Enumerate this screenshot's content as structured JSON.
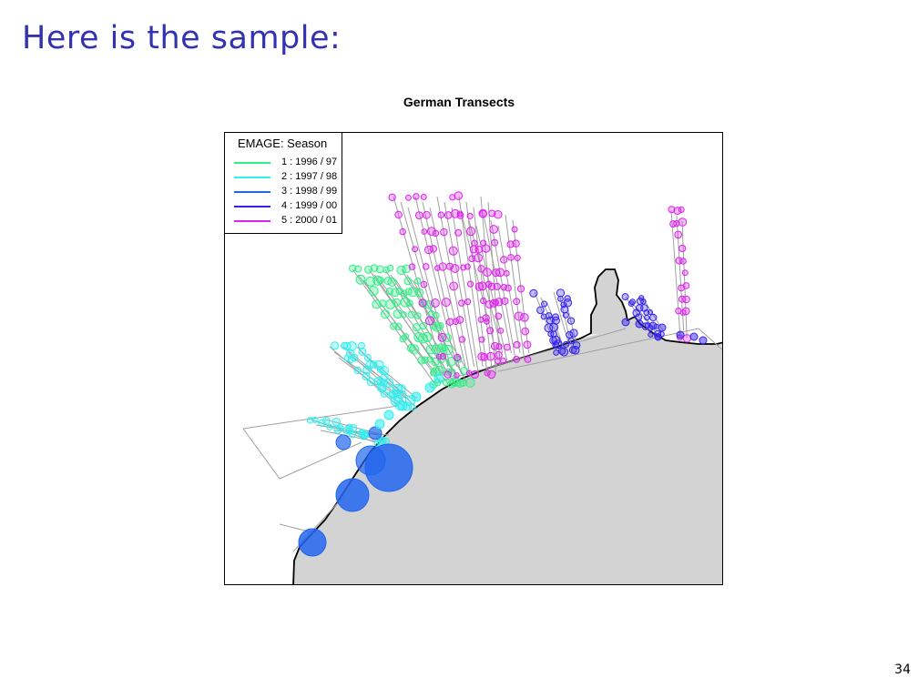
{
  "slide": {
    "title": "Here is the sample:",
    "page_number": "34"
  },
  "map": {
    "title": "German Transects",
    "land_color": "#d3d3d3",
    "track_color": "#a0a0a0",
    "legend": {
      "title": "EMAGE: Season",
      "items": [
        {
          "label": "1 : 1996 / 97",
          "color": "#33ee88"
        },
        {
          "label": "2 : 1997 / 98",
          "color": "#33eeee"
        },
        {
          "label": "3 : 1998 / 99",
          "color": "#2266ee"
        },
        {
          "label": "4 : 1999 / 00",
          "color": "#3322ee"
        },
        {
          "label": "5 : 2000 / 01",
          "color": "#dd22ee"
        }
      ]
    }
  }
}
